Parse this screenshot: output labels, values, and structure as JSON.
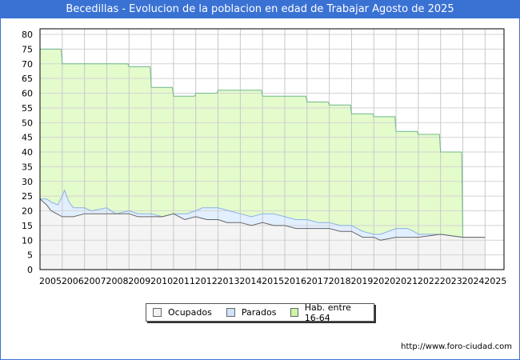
{
  "header": {
    "title": "Becedillas - Evolucion de la poblacion en edad de Trabajar Agosto de 2025"
  },
  "footer": {
    "url": "http://www.foro-ciudad.com"
  },
  "legend": {
    "items": [
      {
        "label": "Ocupados",
        "color": "#f2f2f2"
      },
      {
        "label": "Parados",
        "color": "#cfe3ff"
      },
      {
        "label": "Hab. entre 16-64",
        "color": "#ccf5a8"
      }
    ]
  },
  "colors": {
    "title_bg": "#3a72d4",
    "hab_fill": "#e4fbcc",
    "hab_line": "#6fb88a",
    "parados_fill": "#e2efff",
    "parados_line": "#8ab0e8",
    "ocupados_fill": "#f4f4f4",
    "ocupados_line": "#666666"
  },
  "chart_data": {
    "type": "area",
    "title": "Becedillas - Evolucion de la poblacion en edad de Trabajar Agosto de 2025",
    "xlabel": "",
    "ylabel": "",
    "ylim": [
      0,
      80
    ],
    "yticks": [
      0,
      5,
      10,
      15,
      20,
      25,
      30,
      35,
      40,
      45,
      50,
      55,
      60,
      65,
      70,
      75,
      80
    ],
    "xticks": [
      "2005",
      "2006",
      "2007",
      "2008",
      "2009",
      "2010",
      "2011",
      "2012",
      "2013",
      "2014",
      "2015",
      "2016",
      "2017",
      "2018",
      "2019",
      "2020",
      "2021",
      "2022",
      "2023",
      "2024",
      "2025"
    ],
    "grid": true,
    "legend_position": "bottom",
    "series": [
      {
        "name": "Hab. entre 16-64",
        "x": [
          2005,
          2005.95,
          2006,
          2008.95,
          2009,
          2009.95,
          2010,
          2010.95,
          2011,
          2011.95,
          2012,
          2012.95,
          2013,
          2014.95,
          2015,
          2016.95,
          2017,
          2017.95,
          2018,
          2018.95,
          2019,
          2019.95,
          2020,
          2020.95,
          2021,
          2021.95,
          2022,
          2022.95,
          2023,
          2023.95,
          2024
        ],
        "values": [
          75,
          75,
          70,
          70,
          69,
          69,
          62,
          62,
          59,
          59,
          60,
          60,
          61,
          61,
          59,
          59,
          57,
          57,
          56,
          56,
          53,
          53,
          52,
          52,
          47,
          47,
          46,
          46,
          40,
          40,
          11
        ]
      },
      {
        "name": "Parados",
        "x": [
          2005,
          2005.3,
          2005.5,
          2005.8,
          2006.0,
          2006.1,
          2006.3,
          2006.5,
          2007.0,
          2007.3,
          2008,
          2008.4,
          2009,
          2009.4,
          2010,
          2010.5,
          2011,
          2011.6,
          2012,
          2012.3,
          2013,
          2013.5,
          2014,
          2014.5,
          2015,
          2015.5,
          2016,
          2016.5,
          2017,
          2017.5,
          2018,
          2018.5,
          2019,
          2019.5,
          2020,
          2020.3,
          2021,
          2021.2,
          2021.5,
          2021.8,
          2022,
          2023,
          2024,
          2025
        ],
        "values": [
          24,
          24,
          23,
          22,
          25,
          27,
          23,
          21,
          21,
          20,
          21,
          19,
          20,
          19,
          19,
          18,
          19,
          19,
          20,
          21,
          21,
          20,
          19,
          18,
          19,
          19,
          18,
          17,
          17,
          16,
          16,
          15,
          15,
          13,
          12,
          12,
          14,
          14,
          14,
          13,
          12,
          12,
          11,
          11
        ]
      },
      {
        "name": "Ocupados",
        "x": [
          2005,
          2005.3,
          2005.5,
          2006,
          2006.5,
          2007,
          2008,
          2008.4,
          2009,
          2009.4,
          2010,
          2010.5,
          2011,
          2011.5,
          2012,
          2012.5,
          2013,
          2013.4,
          2014,
          2014.5,
          2015,
          2015.5,
          2016,
          2016.5,
          2017,
          2017.5,
          2018,
          2018.5,
          2019,
          2019.5,
          2020,
          2020.3,
          2021,
          2022,
          2023,
          2024,
          2025
        ],
        "values": [
          24,
          22,
          20,
          18,
          18,
          19,
          19,
          19,
          19,
          18,
          18,
          18,
          19,
          17,
          18,
          17,
          17,
          16,
          16,
          15,
          16,
          15,
          15,
          14,
          14,
          14,
          14,
          13,
          13,
          11,
          11,
          10,
          11,
          11,
          12,
          11,
          11
        ]
      }
    ]
  }
}
